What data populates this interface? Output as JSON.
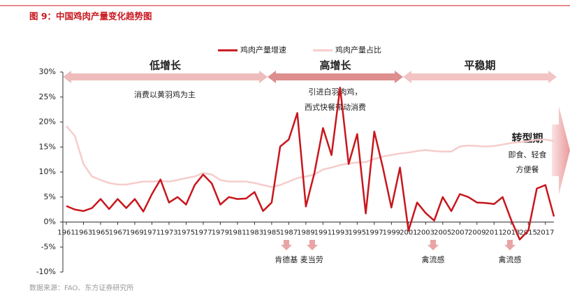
{
  "chart_data": {
    "type": "line",
    "title": "图 9：中国鸡肉产量变化趋势图",
    "source": "数据来源：FAO、东方证券研究所",
    "x": [
      1961,
      1962,
      1963,
      1964,
      1965,
      1966,
      1967,
      1968,
      1969,
      1970,
      1971,
      1972,
      1973,
      1974,
      1975,
      1976,
      1977,
      1978,
      1979,
      1980,
      1981,
      1982,
      1983,
      1984,
      1985,
      1986,
      1987,
      1988,
      1989,
      1990,
      1991,
      1992,
      1993,
      1994,
      1995,
      1996,
      1997,
      1998,
      1999,
      2000,
      2001,
      2002,
      2003,
      2004,
      2005,
      2006,
      2007,
      2008,
      2009,
      2010,
      2011,
      2012,
      2013,
      2014,
      2015,
      2016,
      2017,
      2018
    ],
    "xlim": [
      1961,
      2018
    ],
    "xticks": [
      1961,
      1963,
      1965,
      1967,
      1969,
      1971,
      1973,
      1975,
      1977,
      1979,
      1981,
      1983,
      1985,
      1987,
      1989,
      1991,
      1993,
      1995,
      1997,
      1999,
      2001,
      2003,
      2005,
      2007,
      2009,
      2011,
      2013,
      2015,
      2017
    ],
    "ylim": [
      -10,
      30
    ],
    "yticks": [
      {
        "value": -10,
        "label": "-10%"
      },
      {
        "value": -5,
        "label": "-5%"
      },
      {
        "value": 0,
        "label": "0%"
      },
      {
        "value": 5,
        "label": "5%"
      },
      {
        "value": 10,
        "label": "10%"
      },
      {
        "value": 15,
        "label": "15%"
      },
      {
        "value": 20,
        "label": "20%"
      },
      {
        "value": 25,
        "label": "25%"
      },
      {
        "value": 30,
        "label": "30%"
      }
    ],
    "series": [
      {
        "name": "鸡肉产量增速",
        "color": "#c8161d",
        "values": [
          3.2,
          2.5,
          2.2,
          2.8,
          4.6,
          2.6,
          4.6,
          2.8,
          4.6,
          2.1,
          5.6,
          8.5,
          3.9,
          5.0,
          3.5,
          7.4,
          9.5,
          7.7,
          3.5,
          5.0,
          4.6,
          4.7,
          6.0,
          2.2,
          3.9,
          15.1,
          16.5,
          21.8,
          3.1,
          9.8,
          18.8,
          13.4,
          26.9,
          11.6,
          17.6,
          1.7,
          18.1,
          10.9,
          2.9,
          10.9,
          -1.7,
          3.9,
          1.8,
          0.3,
          5.0,
          2.2,
          5.6,
          5.0,
          3.9,
          3.8,
          3.6,
          5.0,
          0.4,
          -3.5,
          -1.7,
          6.7,
          7.4,
          1.1
        ]
      },
      {
        "name": "鸡肉产量占比",
        "color": "#f6cccc",
        "values": [
          19.2,
          17.2,
          11.6,
          9.1,
          8.4,
          7.8,
          7.5,
          7.5,
          7.8,
          8.1,
          8.1,
          8.2,
          8.1,
          8.4,
          8.8,
          9.1,
          9.8,
          9.5,
          8.4,
          8.1,
          8.1,
          8.1,
          7.8,
          7.4,
          7.0,
          7.4,
          8.1,
          8.8,
          9.1,
          9.5,
          10.5,
          10.9,
          11.4,
          11.7,
          11.9,
          12.0,
          12.6,
          13.1,
          13.4,
          13.7,
          13.9,
          14.2,
          14.4,
          14.2,
          14.1,
          14.1,
          15.1,
          15.3,
          15.2,
          15.1,
          15.2,
          15.5,
          15.8,
          16.0,
          16.2,
          16.5,
          16.5,
          16.2
        ]
      }
    ],
    "phases": [
      {
        "label": "低增长",
        "note": [
          "消费以黄羽鸡为主"
        ]
      },
      {
        "label": "高增长",
        "note": [
          "引进白羽肉鸡，",
          "西式快餐带动消费"
        ]
      },
      {
        "label": "平稳期"
      },
      {
        "label": "转型期",
        "note": [
          "即食、轻食",
          "方便餐"
        ]
      }
    ],
    "events": [
      "肯德基 麦当劳",
      "禽流感",
      "禽流感"
    ]
  }
}
